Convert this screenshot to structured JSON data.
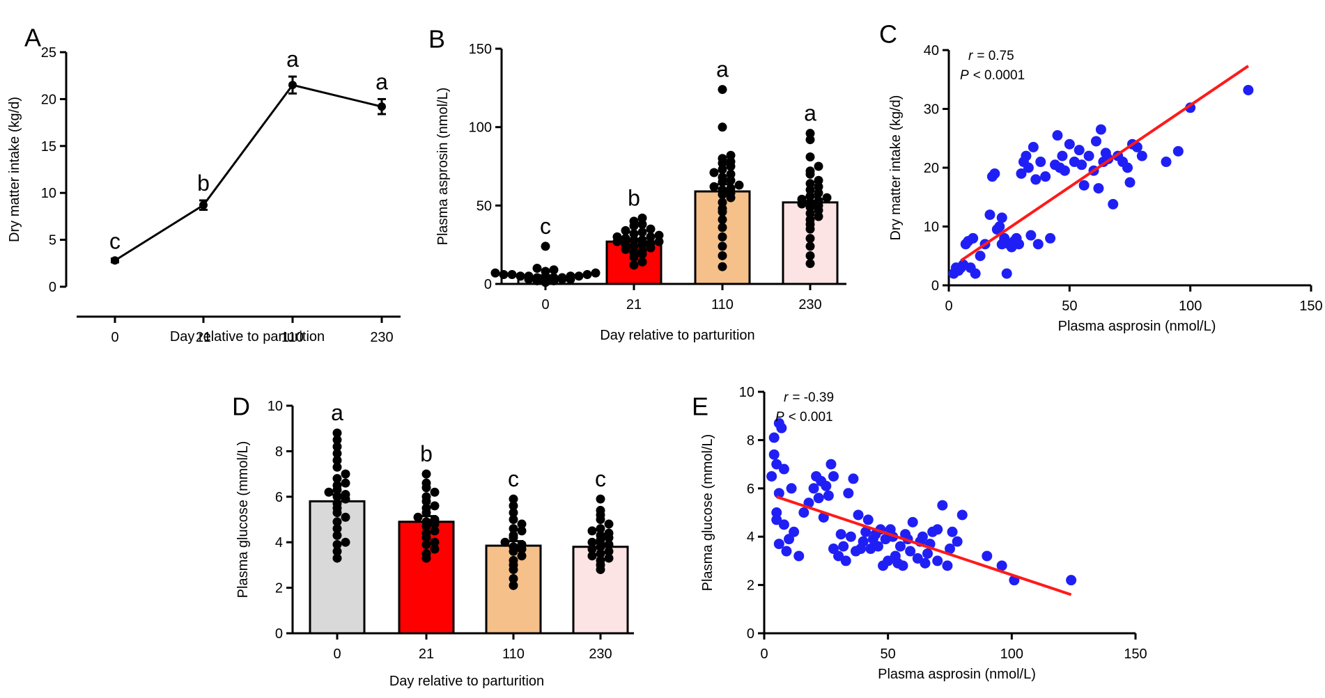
{
  "colors": {
    "black": "#000000",
    "red": "#ff0000",
    "orange": "#f5c08a",
    "pink": "#fde4e4",
    "grey": "#d9d9d9",
    "blue": "#1f1ff5",
    "fit_line": "#ff1a1a"
  },
  "chart_data": [
    {
      "id": "A",
      "type": "line",
      "panel_label": "A",
      "xlabel": "Day relative to parturition",
      "ylabel": "Dry matter intake (kg/d)",
      "categories": [
        "0",
        "21",
        "110",
        "230"
      ],
      "values": [
        2.8,
        8.7,
        21.5,
        19.2
      ],
      "errors": [
        0.2,
        0.5,
        0.9,
        0.8
      ],
      "sig_letters": [
        "c",
        "b",
        "a",
        "a"
      ],
      "ylim": [
        0,
        25
      ],
      "yticks": [
        "0",
        "5",
        "10",
        "15",
        "20",
        "25"
      ]
    },
    {
      "id": "B",
      "type": "bar",
      "panel_label": "B",
      "xlabel": "Day relative to parturition",
      "ylabel": "Plasma asprosin (nmol/L)",
      "categories": [
        "0",
        "21",
        "110",
        "230"
      ],
      "values": [
        4.5,
        27,
        59,
        52
      ],
      "errors": [
        1.0,
        1.5,
        4.5,
        3.5
      ],
      "sig_letters": [
        "c",
        "b",
        "a",
        "a"
      ],
      "ylim": [
        0,
        150
      ],
      "yticks": [
        "0",
        "50",
        "100",
        "150"
      ],
      "points": [
        [
          1,
          2,
          2,
          3,
          3,
          3,
          4,
          4,
          4,
          4,
          5,
          5,
          5,
          5,
          6,
          6,
          6,
          7,
          7,
          8,
          9,
          10,
          24
        ],
        [
          12,
          14,
          17,
          19,
          20,
          21,
          22,
          23,
          24,
          25,
          25,
          26,
          27,
          27,
          28,
          28,
          29,
          30,
          30,
          31,
          32,
          33,
          34,
          35,
          37,
          38,
          40,
          42
        ],
        [
          11,
          18,
          24,
          30,
          36,
          41,
          46,
          48,
          52,
          55,
          57,
          58,
          60,
          61,
          62,
          63,
          65,
          66,
          68,
          70,
          71,
          73,
          75,
          77,
          78,
          80,
          82,
          100,
          124
        ],
        [
          13,
          18,
          24,
          29,
          35,
          38,
          41,
          43,
          45,
          47,
          49,
          50,
          51,
          52,
          53,
          54,
          55,
          56,
          58,
          60,
          62,
          64,
          66,
          70,
          72,
          75,
          81,
          92,
          96
        ]
      ]
    },
    {
      "id": "C",
      "type": "scatter",
      "panel_label": "C",
      "xlabel": "Plasma asprosin (nmol/L)",
      "ylabel": "Dry matter intake (kg/d)",
      "r_label": "r",
      "r_value": "= 0.75",
      "p_label": "P",
      "p_value": "< 0.0001",
      "xlim": [
        0,
        150
      ],
      "ylim": [
        0,
        40
      ],
      "xticks": [
        "0",
        "50",
        "100",
        "150"
      ],
      "yticks": [
        "0",
        "10",
        "20",
        "30",
        "40"
      ],
      "fit": {
        "x0": 5,
        "y0": 4.2,
        "x1": 124,
        "y1": 37.3
      },
      "x": [
        2,
        3,
        4,
        5,
        6,
        7,
        8,
        9,
        10,
        11,
        13,
        15,
        17,
        18,
        19,
        20,
        21,
        22,
        22,
        23,
        24,
        25,
        26,
        27,
        28,
        29,
        30,
        31,
        32,
        33,
        34,
        35,
        36,
        37,
        38,
        40,
        42,
        44,
        45,
        46,
        47,
        48,
        50,
        52,
        54,
        55,
        56,
        58,
        60,
        61,
        62,
        63,
        64,
        65,
        66,
        68,
        70,
        72,
        74,
        75,
        76,
        78,
        80,
        90,
        95,
        100,
        124
      ],
      "y": [
        2,
        3,
        2.5,
        3,
        3.5,
        7,
        7.5,
        3,
        8,
        2,
        5,
        7,
        12,
        18.5,
        19,
        9.5,
        10,
        11.5,
        7,
        8,
        2,
        7,
        6.5,
        7.5,
        8,
        7,
        19,
        21,
        22,
        20,
        8.5,
        23.5,
        18,
        7,
        21,
        18.5,
        8,
        20.5,
        25.5,
        20,
        22,
        19.5,
        24,
        21,
        23,
        20.5,
        17,
        22,
        19.5,
        24.5,
        16.5,
        26.5,
        21,
        22.5,
        21.5,
        13.8,
        22,
        21,
        20,
        17.5,
        24,
        23.5,
        22,
        21,
        22.8,
        30.2,
        33.2
      ]
    },
    {
      "id": "D",
      "type": "bar",
      "panel_label": "D",
      "xlabel": "Day relative to parturition",
      "ylabel": "Plasma glucose (mmol/L)",
      "categories": [
        "0",
        "21",
        "110",
        "230"
      ],
      "values": [
        5.8,
        4.9,
        3.85,
        3.8
      ],
      "errors": [
        0.3,
        0.25,
        0.2,
        0.15
      ],
      "sig_letters": [
        "a",
        "b",
        "c",
        "c"
      ],
      "ylim": [
        0,
        10
      ],
      "yticks": [
        "0",
        "2",
        "4",
        "6",
        "8",
        "10"
      ],
      "points": [
        [
          3.3,
          3.6,
          3.9,
          4.0,
          4.3,
          4.6,
          4.9,
          5.1,
          5.3,
          5.5,
          5.7,
          5.9,
          6.0,
          6.1,
          6.2,
          6.3,
          6.5,
          6.6,
          6.8,
          7.0,
          7.3,
          7.6,
          7.9,
          8.2,
          8.5,
          8.8
        ],
        [
          3.3,
          3.5,
          3.7,
          3.9,
          4.0,
          4.2,
          4.4,
          4.5,
          4.7,
          4.8,
          4.9,
          5.0,
          5.1,
          5.3,
          5.5,
          5.6,
          5.8,
          6.0,
          6.2,
          6.4,
          6.6,
          7.0
        ],
        [
          2.1,
          2.4,
          2.8,
          3.0,
          3.2,
          3.4,
          3.6,
          3.7,
          3.8,
          3.9,
          4.0,
          4.2,
          4.3,
          4.5,
          4.6,
          4.8,
          5.0,
          5.3,
          5.6,
          5.9
        ],
        [
          2.8,
          3.0,
          3.2,
          3.3,
          3.4,
          3.5,
          3.6,
          3.7,
          3.8,
          3.9,
          4.0,
          4.1,
          4.2,
          4.3,
          4.4,
          4.5,
          4.6,
          4.8,
          5.0,
          5.2,
          5.4,
          5.9
        ]
      ]
    },
    {
      "id": "E",
      "type": "scatter",
      "panel_label": "E",
      "xlabel": "Plasma asprosin (nmol/L)",
      "ylabel": "Plasma glucose (mmol/L)",
      "r_label": "r",
      "r_value": "= -0.39",
      "p_label": "P",
      "p_value": "< 0.001",
      "xlim": [
        0,
        150
      ],
      "ylim": [
        0,
        10
      ],
      "xticks": [
        "0",
        "50",
        "100",
        "150"
      ],
      "yticks": [
        "0",
        "2",
        "4",
        "6",
        "8",
        "10"
      ],
      "fit": {
        "x0": 5,
        "y0": 5.65,
        "x1": 124,
        "y1": 1.6
      },
      "x": [
        3,
        4,
        4,
        5,
        5,
        5,
        6,
        6,
        6,
        7,
        8,
        8,
        9,
        10,
        11,
        12,
        14,
        16,
        18,
        20,
        21,
        22,
        23,
        24,
        25,
        26,
        27,
        28,
        28,
        30,
        31,
        32,
        33,
        34,
        35,
        36,
        37,
        38,
        39,
        40,
        41,
        42,
        43,
        44,
        45,
        46,
        47,
        48,
        49,
        50,
        51,
        52,
        53,
        54,
        55,
        56,
        57,
        58,
        59,
        60,
        62,
        63,
        64,
        65,
        66,
        67,
        68,
        70,
        70,
        72,
        74,
        75,
        76,
        78,
        80,
        90,
        96,
        101,
        124
      ],
      "y": [
        6.5,
        8.1,
        7.4,
        5.0,
        4.7,
        7.0,
        8.7,
        5.8,
        3.7,
        8.5,
        4.5,
        6.8,
        3.4,
        3.9,
        6.0,
        4.2,
        3.2,
        5.0,
        5.4,
        6.0,
        6.5,
        5.6,
        6.3,
        4.8,
        6.1,
        5.7,
        7.0,
        3.5,
        6.5,
        3.2,
        4.1,
        3.6,
        3.0,
        5.8,
        4.0,
        6.4,
        3.4,
        4.9,
        3.5,
        3.8,
        4.2,
        4.7,
        3.5,
        3.9,
        4.1,
        3.6,
        4.3,
        2.8,
        3.9,
        3.0,
        4.3,
        4.0,
        3.2,
        2.9,
        3.6,
        2.8,
        4.1,
        3.9,
        3.4,
        4.6,
        3.1,
        3.8,
        4.0,
        2.9,
        3.3,
        3.7,
        4.2,
        3.0,
        4.3,
        5.3,
        2.8,
        3.5,
        4.2,
        3.8,
        4.9,
        3.2,
        2.8,
        2.2,
        2.2
      ]
    }
  ]
}
